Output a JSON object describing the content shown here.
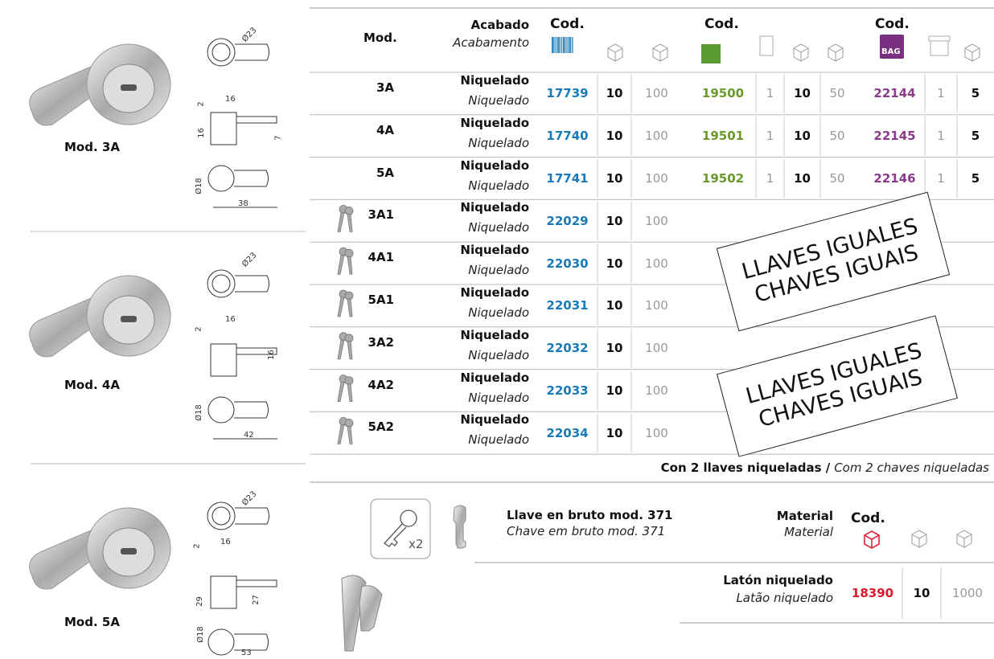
{
  "models": [
    {
      "label": "Mod. 3A",
      "dims": [
        "Ø23",
        "16",
        "2",
        "16",
        "7",
        "Ø18",
        "38"
      ]
    },
    {
      "label": "Mod. 4A",
      "dims": [
        "Ø23",
        "16",
        "2",
        "16",
        "Ø18",
        "42"
      ]
    },
    {
      "label": "Mod. 5A",
      "dims": [
        "Ø23",
        "16",
        "2",
        "29",
        "27",
        "Ø18",
        "53"
      ]
    }
  ],
  "header": {
    "mod": "Mod.",
    "finish": "Acabado",
    "finish_pt": "Acabamento",
    "code_labels": [
      "Cod.",
      "Cod.",
      "Cod."
    ],
    "bag": "BAG"
  },
  "rows": [
    {
      "model": "3A",
      "finish": "Niquelado",
      "finish_pt": "Niquelado",
      "cells": [
        17739,
        10,
        100,
        19500,
        1,
        10,
        50,
        22144,
        1,
        5
      ]
    },
    {
      "model": "4A",
      "finish": "Niquelado",
      "finish_pt": "Niquelado",
      "cells": [
        17740,
        10,
        100,
        19501,
        1,
        10,
        50,
        22145,
        1,
        5
      ]
    },
    {
      "model": "5A",
      "finish": "Niquelado",
      "finish_pt": "Niquelado",
      "cells": [
        17741,
        10,
        100,
        19502,
        1,
        10,
        50,
        22146,
        1,
        5
      ]
    },
    {
      "model": "3A1",
      "finish": "Niquelado",
      "finish_pt": "Niquelado",
      "cells": [
        22029,
        10,
        100
      ]
    },
    {
      "model": "4A1",
      "finish": "Niquelado",
      "finish_pt": "Niquelado",
      "cells": [
        22030,
        10,
        100
      ]
    },
    {
      "model": "5A1",
      "finish": "Niquelado",
      "finish_pt": "Niquelado",
      "cells": [
        22031,
        10,
        100
      ]
    },
    {
      "model": "3A2",
      "finish": "Niquelado",
      "finish_pt": "Niquelado",
      "cells": [
        22032,
        10,
        100
      ]
    },
    {
      "model": "4A2",
      "finish": "Niquelado",
      "finish_pt": "Niquelado",
      "cells": [
        22033,
        10,
        100
      ]
    },
    {
      "model": "5A2",
      "finish": "Niquelado",
      "finish_pt": "Niquelado",
      "cells": [
        22034,
        10,
        100
      ]
    }
  ],
  "stamps": [
    {
      "lines": [
        "LLAVES IGUALES",
        "CHAVES IGUAIS"
      ]
    },
    {
      "lines": [
        "LLAVES IGUALES",
        "CHAVES IGUAIS"
      ]
    }
  ],
  "note": {
    "bold": "Con 2 llaves niqueladas /",
    "italic": "Com 2 chaves niqueladas"
  },
  "blank_key": {
    "badge": "x2",
    "title": "Llave en bruto mod. 371",
    "title_pt": "Chave em bruto mod. 371",
    "material_label": "Material",
    "material_label_pt": "Material",
    "code_label": "Cod.",
    "material": "Latón niquelado",
    "material_pt": "Latão niquelado",
    "cells": [
      18390,
      10,
      1000
    ]
  }
}
